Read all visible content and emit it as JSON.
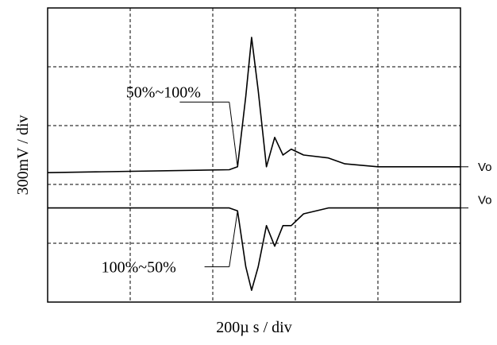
{
  "chart_data": {
    "type": "line",
    "xlabel": "200µ s / div",
    "ylabel": "300mV / div",
    "x_divisions": 5,
    "y_divisions": 5,
    "grid": true,
    "grid_style": "dashed",
    "series": [
      {
        "annotation": "50%~100%",
        "right_label": "Vo",
        "points": [
          [
            0,
            2.2
          ],
          [
            2.2,
            2.25
          ],
          [
            2.3,
            2.3
          ],
          [
            2.4,
            3.5
          ],
          [
            2.47,
            4.5
          ],
          [
            2.55,
            3.6
          ],
          [
            2.65,
            2.3
          ],
          [
            2.75,
            2.8
          ],
          [
            2.85,
            2.5
          ],
          [
            2.95,
            2.6
          ],
          [
            3.1,
            2.5
          ],
          [
            3.4,
            2.45
          ],
          [
            3.6,
            2.35
          ],
          [
            4.0,
            2.3
          ],
          [
            5.0,
            2.3
          ]
        ]
      },
      {
        "annotation": "100%~50%",
        "right_label": "Vo",
        "points": [
          [
            0,
            1.6
          ],
          [
            2.2,
            1.6
          ],
          [
            2.3,
            1.55
          ],
          [
            2.4,
            0.6
          ],
          [
            2.47,
            0.2
          ],
          [
            2.55,
            0.6
          ],
          [
            2.65,
            1.3
          ],
          [
            2.75,
            0.95
          ],
          [
            2.85,
            1.3
          ],
          [
            2.95,
            1.3
          ],
          [
            3.1,
            1.5
          ],
          [
            3.4,
            1.6
          ],
          [
            4.0,
            1.6
          ],
          [
            5.0,
            1.6
          ]
        ]
      }
    ]
  }
}
